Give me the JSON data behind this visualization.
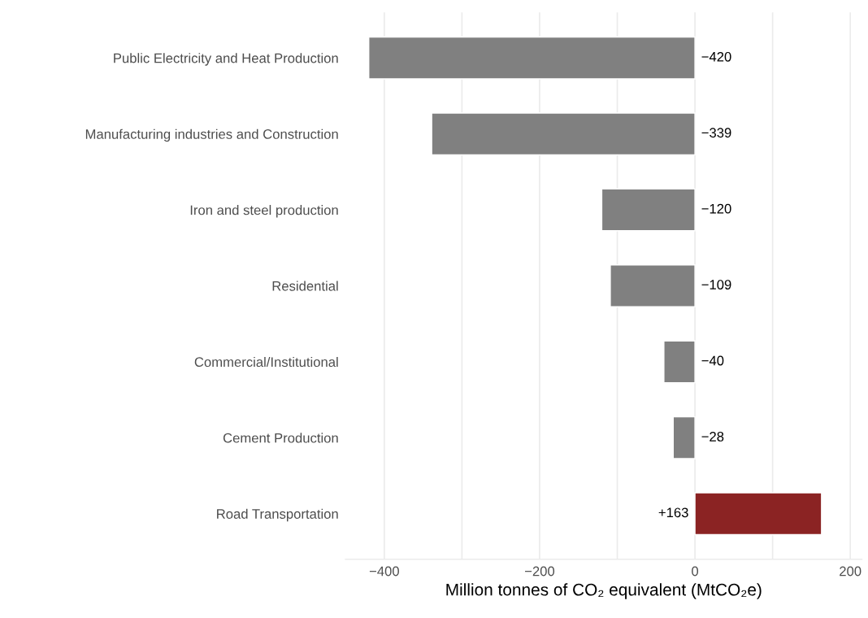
{
  "chart_data": {
    "type": "bar",
    "orientation": "horizontal",
    "categories": [
      "Public Electricity and Heat Production",
      "Manufacturing industries and Construction",
      "Iron and steel production",
      "Residential",
      "Commercial/Institutional",
      "Cement Production",
      "Road Transportation"
    ],
    "values": [
      -420,
      -339,
      -120,
      -109,
      -40,
      -28,
      163
    ],
    "colors": [
      "#808080",
      "#808080",
      "#808080",
      "#808080",
      "#808080",
      "#808080",
      "#8b2323"
    ],
    "value_labels": [
      "−420",
      "−339",
      "−120",
      "−109",
      "−40",
      "−28",
      "+163"
    ],
    "xlabel": "Million tonnes of CO₂ equivalent (MtCO₂e)",
    "xlim": [
      -450,
      215
    ],
    "xticks": [
      {
        "value": -400,
        "label": "−400"
      },
      {
        "value": -300,
        "label": null
      },
      {
        "value": -200,
        "label": "−200"
      },
      {
        "value": -100,
        "label": null
      },
      0,
      {
        "value": 100,
        "label": null
      },
      200
    ],
    "grid": "x"
  }
}
